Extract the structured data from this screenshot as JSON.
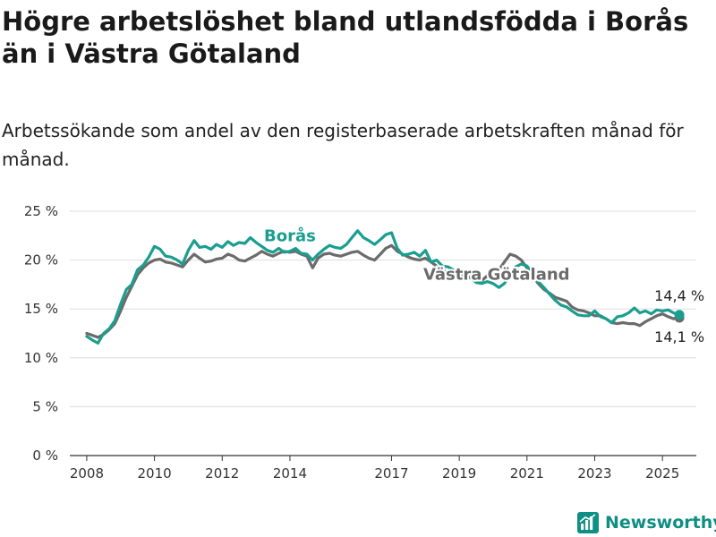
{
  "title": "Högre arbetslöshet bland utlandsfödda i Borås än i Västra Götaland",
  "subtitle": "Arbetssökande som andel av den registerbaserade arbetskraften månad för månad.",
  "brand": {
    "name": "Newsworthy",
    "color": "#0f8f84"
  },
  "chart_data": {
    "type": "line",
    "title": "Högre arbetslöshet bland utlandsfödda i Borås än i Västra Götaland",
    "subtitle": "Arbetssökande som andel av den registerbaserade arbetskraften månad för månad.",
    "xlabel": "",
    "ylabel": "",
    "ylim": [
      0,
      25
    ],
    "xlim": [
      2007.5,
      2026.0
    ],
    "yticks": [
      0,
      5,
      10,
      15,
      20,
      25
    ],
    "ytick_labels": [
      "0 %",
      "5 %",
      "10 %",
      "15 %",
      "20 %",
      "25 %"
    ],
    "xticks": [
      2008,
      2010,
      2012,
      2014,
      2017,
      2019,
      2021,
      2023,
      2025
    ],
    "xtick_labels": [
      "2008",
      "2010",
      "2012",
      "2014",
      "2017",
      "2019",
      "2021",
      "2023",
      "2025"
    ],
    "grid": "horizontal",
    "series": [
      {
        "name": "Borås",
        "color": "#1a9e8f",
        "end_label": "14,4 %",
        "points": [
          [
            2008.0,
            12.2
          ],
          [
            2008.17,
            11.8
          ],
          [
            2008.33,
            11.5
          ],
          [
            2008.5,
            12.5
          ],
          [
            2008.67,
            13.0
          ],
          [
            2008.83,
            13.8
          ],
          [
            2009.0,
            15.5
          ],
          [
            2009.17,
            17.0
          ],
          [
            2009.33,
            17.5
          ],
          [
            2009.5,
            19.0
          ],
          [
            2009.67,
            19.5
          ],
          [
            2009.83,
            20.3
          ],
          [
            2010.0,
            21.4
          ],
          [
            2010.17,
            21.1
          ],
          [
            2010.33,
            20.4
          ],
          [
            2010.5,
            20.3
          ],
          [
            2010.67,
            20.0
          ],
          [
            2010.83,
            19.6
          ],
          [
            2011.0,
            21.0
          ],
          [
            2011.17,
            22.0
          ],
          [
            2011.33,
            21.3
          ],
          [
            2011.5,
            21.4
          ],
          [
            2011.67,
            21.1
          ],
          [
            2011.83,
            21.6
          ],
          [
            2012.0,
            21.3
          ],
          [
            2012.17,
            21.9
          ],
          [
            2012.33,
            21.5
          ],
          [
            2012.5,
            21.8
          ],
          [
            2012.67,
            21.7
          ],
          [
            2012.83,
            22.3
          ],
          [
            2013.0,
            21.8
          ],
          [
            2013.17,
            21.4
          ],
          [
            2013.33,
            21.0
          ],
          [
            2013.5,
            20.8
          ],
          [
            2013.67,
            21.2
          ],
          [
            2013.83,
            20.8
          ],
          [
            2014.0,
            20.9
          ],
          [
            2014.17,
            21.2
          ],
          [
            2014.33,
            20.7
          ],
          [
            2014.5,
            20.6
          ],
          [
            2014.67,
            20.0
          ],
          [
            2014.83,
            20.6
          ],
          [
            2015.0,
            21.1
          ],
          [
            2015.17,
            21.5
          ],
          [
            2015.33,
            21.3
          ],
          [
            2015.5,
            21.2
          ],
          [
            2015.67,
            21.6
          ],
          [
            2015.83,
            22.3
          ],
          [
            2016.0,
            23.0
          ],
          [
            2016.17,
            22.3
          ],
          [
            2016.33,
            22.0
          ],
          [
            2016.5,
            21.6
          ],
          [
            2016.67,
            22.1
          ],
          [
            2016.83,
            22.6
          ],
          [
            2017.0,
            22.8
          ],
          [
            2017.17,
            21.2
          ],
          [
            2017.33,
            20.5
          ],
          [
            2017.5,
            20.6
          ],
          [
            2017.67,
            20.8
          ],
          [
            2017.83,
            20.4
          ],
          [
            2018.0,
            21.0
          ],
          [
            2018.17,
            19.8
          ],
          [
            2018.33,
            20.0
          ],
          [
            2018.5,
            19.4
          ],
          [
            2018.67,
            19.3
          ],
          [
            2018.83,
            19.0
          ],
          [
            2019.0,
            18.8
          ],
          [
            2019.17,
            18.4
          ],
          [
            2019.33,
            18.2
          ],
          [
            2019.5,
            17.7
          ],
          [
            2019.67,
            17.6
          ],
          [
            2019.83,
            17.8
          ],
          [
            2020.0,
            17.6
          ],
          [
            2020.17,
            17.2
          ],
          [
            2020.33,
            17.6
          ],
          [
            2020.5,
            18.5
          ],
          [
            2020.67,
            19.3
          ],
          [
            2020.83,
            19.6
          ],
          [
            2021.0,
            19.4
          ],
          [
            2021.17,
            18.6
          ],
          [
            2021.33,
            17.8
          ],
          [
            2021.5,
            17.2
          ],
          [
            2021.67,
            16.5
          ],
          [
            2021.83,
            15.9
          ],
          [
            2022.0,
            15.4
          ],
          [
            2022.17,
            15.2
          ],
          [
            2022.33,
            14.8
          ],
          [
            2022.5,
            14.4
          ],
          [
            2022.67,
            14.3
          ],
          [
            2022.83,
            14.3
          ],
          [
            2023.0,
            14.8
          ],
          [
            2023.17,
            14.2
          ],
          [
            2023.33,
            14.0
          ],
          [
            2023.5,
            13.6
          ],
          [
            2023.67,
            14.2
          ],
          [
            2023.83,
            14.3
          ],
          [
            2024.0,
            14.6
          ],
          [
            2024.17,
            15.1
          ],
          [
            2024.33,
            14.6
          ],
          [
            2024.5,
            14.8
          ],
          [
            2024.67,
            14.5
          ],
          [
            2024.83,
            14.9
          ],
          [
            2025.0,
            14.8
          ],
          [
            2025.17,
            14.9
          ],
          [
            2025.33,
            14.6
          ],
          [
            2025.5,
            14.4
          ]
        ]
      },
      {
        "name": "Västra Götaland",
        "color": "#6b6b6b",
        "end_label": "14,1 %",
        "points": [
          [
            2008.0,
            12.5
          ],
          [
            2008.17,
            12.3
          ],
          [
            2008.33,
            12.1
          ],
          [
            2008.5,
            12.4
          ],
          [
            2008.67,
            12.9
          ],
          [
            2008.83,
            13.5
          ],
          [
            2009.0,
            14.8
          ],
          [
            2009.17,
            16.2
          ],
          [
            2009.33,
            17.3
          ],
          [
            2009.5,
            18.5
          ],
          [
            2009.67,
            19.2
          ],
          [
            2009.83,
            19.7
          ],
          [
            2010.0,
            20.0
          ],
          [
            2010.17,
            20.1
          ],
          [
            2010.33,
            19.8
          ],
          [
            2010.5,
            19.7
          ],
          [
            2010.67,
            19.5
          ],
          [
            2010.83,
            19.3
          ],
          [
            2011.0,
            20.0
          ],
          [
            2011.17,
            20.6
          ],
          [
            2011.33,
            20.2
          ],
          [
            2011.5,
            19.8
          ],
          [
            2011.67,
            19.9
          ],
          [
            2011.83,
            20.1
          ],
          [
            2012.0,
            20.2
          ],
          [
            2012.17,
            20.6
          ],
          [
            2012.33,
            20.4
          ],
          [
            2012.5,
            20.0
          ],
          [
            2012.67,
            19.9
          ],
          [
            2012.83,
            20.2
          ],
          [
            2013.0,
            20.5
          ],
          [
            2013.17,
            20.9
          ],
          [
            2013.33,
            20.6
          ],
          [
            2013.5,
            20.4
          ],
          [
            2013.67,
            20.7
          ],
          [
            2013.83,
            20.9
          ],
          [
            2014.0,
            20.8
          ],
          [
            2014.17,
            20.9
          ],
          [
            2014.33,
            20.6
          ],
          [
            2014.5,
            20.4
          ],
          [
            2014.67,
            19.2
          ],
          [
            2014.83,
            20.2
          ],
          [
            2015.0,
            20.6
          ],
          [
            2015.17,
            20.7
          ],
          [
            2015.33,
            20.5
          ],
          [
            2015.5,
            20.4
          ],
          [
            2015.67,
            20.6
          ],
          [
            2015.83,
            20.8
          ],
          [
            2016.0,
            20.9
          ],
          [
            2016.17,
            20.5
          ],
          [
            2016.33,
            20.2
          ],
          [
            2016.5,
            20.0
          ],
          [
            2016.67,
            20.6
          ],
          [
            2016.83,
            21.2
          ],
          [
            2017.0,
            21.5
          ],
          [
            2017.17,
            20.9
          ],
          [
            2017.33,
            20.6
          ],
          [
            2017.5,
            20.3
          ],
          [
            2017.67,
            20.1
          ],
          [
            2017.83,
            20.0
          ],
          [
            2018.0,
            20.2
          ],
          [
            2018.17,
            19.8
          ],
          [
            2018.33,
            19.4
          ],
          [
            2018.5,
            18.9
          ],
          [
            2018.67,
            18.8
          ],
          [
            2018.83,
            18.7
          ],
          [
            2019.0,
            18.6
          ],
          [
            2019.17,
            18.4
          ],
          [
            2019.33,
            18.2
          ],
          [
            2019.5,
            17.8
          ],
          [
            2019.67,
            17.9
          ],
          [
            2019.83,
            18.4
          ],
          [
            2020.0,
            18.5
          ],
          [
            2020.17,
            19.0
          ],
          [
            2020.33,
            19.8
          ],
          [
            2020.5,
            20.6
          ],
          [
            2020.67,
            20.4
          ],
          [
            2020.83,
            20.0
          ],
          [
            2021.0,
            19.2
          ],
          [
            2021.17,
            18.4
          ],
          [
            2021.33,
            17.6
          ],
          [
            2021.5,
            17.0
          ],
          [
            2021.67,
            16.6
          ],
          [
            2021.83,
            16.2
          ],
          [
            2022.0,
            16.0
          ],
          [
            2022.17,
            15.8
          ],
          [
            2022.33,
            15.2
          ],
          [
            2022.5,
            14.9
          ],
          [
            2022.67,
            14.8
          ],
          [
            2022.83,
            14.6
          ],
          [
            2023.0,
            14.3
          ],
          [
            2023.17,
            14.3
          ],
          [
            2023.33,
            14.0
          ],
          [
            2023.5,
            13.6
          ],
          [
            2023.67,
            13.5
          ],
          [
            2023.83,
            13.6
          ],
          [
            2024.0,
            13.5
          ],
          [
            2024.17,
            13.5
          ],
          [
            2024.33,
            13.3
          ],
          [
            2024.5,
            13.7
          ],
          [
            2024.67,
            14.0
          ],
          [
            2024.83,
            14.3
          ],
          [
            2025.0,
            14.5
          ],
          [
            2025.17,
            14.2
          ],
          [
            2025.33,
            14.0
          ],
          [
            2025.5,
            14.1
          ]
        ]
      }
    ]
  }
}
